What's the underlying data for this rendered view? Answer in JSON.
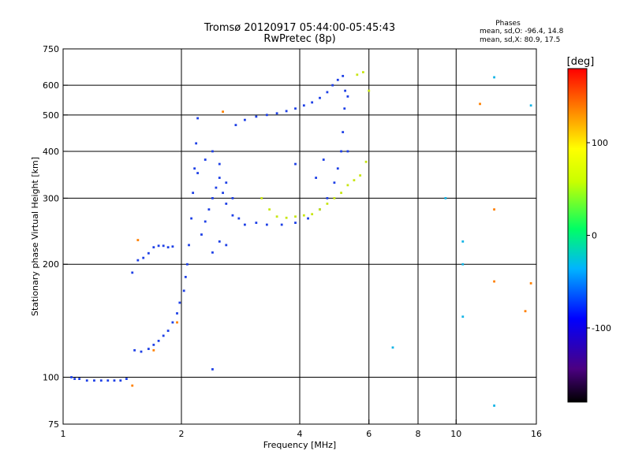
{
  "chart_data": {
    "type": "scatter",
    "title": "Tromsø 20120917 05:44:00-05:45:43",
    "subtitle": "RwPretec (8p)",
    "xlabel": "Frequency [MHz]",
    "ylabel": "Stationary phase Virtual Height [km]",
    "xscale": "log",
    "yscale": "log",
    "xlim": [
      1,
      16
    ],
    "ylim": [
      75,
      750
    ],
    "xticks": [
      1,
      2,
      4,
      6,
      8,
      10,
      16
    ],
    "yticks": [
      75,
      100,
      200,
      300,
      400,
      500,
      600,
      750
    ],
    "xgrid": [
      2,
      4,
      6,
      8,
      10
    ],
    "ygrid": [
      100,
      200,
      300,
      400,
      500,
      600
    ],
    "grid": true,
    "stats": {
      "heading": "Phases",
      "line_o": "mean, sd,O: -96.4, 14.8",
      "line_x": "mean, sd,X:  80.9, 17.5"
    },
    "colorbar": {
      "label": "[deg]",
      "min": -180,
      "max": 180,
      "ticks": [
        100,
        0,
        -100
      ],
      "placement": "right"
    },
    "series": [
      {
        "color": "#1e40e6",
        "description": "blue / purple traces",
        "points": [
          [
            1.05,
            100
          ],
          [
            1.07,
            99
          ],
          [
            1.1,
            99
          ],
          [
            1.15,
            98
          ],
          [
            1.2,
            98
          ],
          [
            1.25,
            98
          ],
          [
            1.3,
            98
          ],
          [
            1.35,
            98
          ],
          [
            1.4,
            98
          ],
          [
            1.45,
            99
          ],
          [
            1.5,
            190
          ],
          [
            1.55,
            205
          ],
          [
            1.6,
            208
          ],
          [
            1.65,
            214
          ],
          [
            1.7,
            222
          ],
          [
            1.75,
            224
          ],
          [
            1.8,
            224
          ],
          [
            1.85,
            222
          ],
          [
            1.9,
            223
          ],
          [
            1.52,
            118
          ],
          [
            1.58,
            117
          ],
          [
            1.65,
            119
          ],
          [
            1.7,
            122
          ],
          [
            1.75,
            125
          ],
          [
            1.8,
            129
          ],
          [
            1.85,
            133
          ],
          [
            1.9,
            140
          ],
          [
            1.95,
            148
          ],
          [
            1.98,
            158
          ],
          [
            2.03,
            170
          ],
          [
            2.05,
            185
          ],
          [
            2.07,
            200
          ],
          [
            2.09,
            225
          ],
          [
            2.12,
            265
          ],
          [
            2.14,
            310
          ],
          [
            2.16,
            360
          ],
          [
            2.18,
            420
          ],
          [
            2.2,
            490
          ],
          [
            2.25,
            240
          ],
          [
            2.3,
            260
          ],
          [
            2.35,
            280
          ],
          [
            2.4,
            300
          ],
          [
            2.45,
            320
          ],
          [
            2.5,
            340
          ],
          [
            2.55,
            310
          ],
          [
            2.6,
            290
          ],
          [
            2.7,
            270
          ],
          [
            2.8,
            265
          ],
          [
            2.2,
            350
          ],
          [
            2.3,
            380
          ],
          [
            2.4,
            400
          ],
          [
            2.5,
            370
          ],
          [
            2.6,
            330
          ],
          [
            2.7,
            300
          ],
          [
            2.5,
            230
          ],
          [
            2.6,
            225
          ],
          [
            2.4,
            215
          ],
          [
            2.75,
            470
          ],
          [
            2.9,
            485
          ],
          [
            3.1,
            495
          ],
          [
            3.3,
            500
          ],
          [
            3.5,
            505
          ],
          [
            3.7,
            512
          ],
          [
            3.9,
            520
          ],
          [
            4.1,
            530
          ],
          [
            4.3,
            540
          ],
          [
            4.5,
            555
          ],
          [
            4.7,
            575
          ],
          [
            4.85,
            600
          ],
          [
            5.0,
            620
          ],
          [
            5.15,
            635
          ],
          [
            2.9,
            255
          ],
          [
            3.1,
            258
          ],
          [
            3.3,
            255
          ],
          [
            3.6,
            255
          ],
          [
            3.9,
            258
          ],
          [
            4.2,
            265
          ],
          [
            4.5,
            280
          ],
          [
            4.7,
            300
          ],
          [
            4.9,
            330
          ],
          [
            5.0,
            360
          ],
          [
            5.1,
            400
          ],
          [
            5.15,
            450
          ],
          [
            5.2,
            520
          ],
          [
            5.22,
            580
          ],
          [
            5.3,
            560
          ],
          [
            5.3,
            400
          ],
          [
            4.6,
            380
          ],
          [
            4.4,
            340
          ],
          [
            3.9,
            370
          ],
          [
            2.4,
            105
          ]
        ]
      },
      {
        "color": "#c8e614",
        "description": "yellow-green trace",
        "points": [
          [
            3.2,
            300
          ],
          [
            3.35,
            280
          ],
          [
            3.5,
            268
          ],
          [
            3.7,
            266
          ],
          [
            3.9,
            268
          ],
          [
            4.1,
            270
          ],
          [
            4.3,
            272
          ],
          [
            4.5,
            280
          ],
          [
            4.7,
            290
          ],
          [
            4.9,
            300
          ],
          [
            5.1,
            310
          ],
          [
            5.3,
            325
          ],
          [
            5.5,
            335
          ],
          [
            5.7,
            345
          ],
          [
            5.9,
            375
          ],
          [
            5.6,
            640
          ],
          [
            5.8,
            650
          ],
          [
            6.0,
            580
          ]
        ]
      },
      {
        "color": "#ff8000",
        "description": "scattered orange / red / other points",
        "points": [
          [
            1.5,
            95
          ],
          [
            1.55,
            232
          ],
          [
            1.7,
            118
          ],
          [
            1.95,
            140
          ],
          [
            2.55,
            510
          ],
          [
            11.5,
            535
          ],
          [
            12.5,
            180
          ],
          [
            12.5,
            280
          ],
          [
            15,
            150
          ],
          [
            15.5,
            178
          ]
        ]
      },
      {
        "color": "#14b4e6",
        "description": "scattered cyan points",
        "points": [
          [
            6.9,
            120
          ],
          [
            9.4,
            300
          ],
          [
            10.4,
            230
          ],
          [
            10.4,
            200
          ],
          [
            10.4,
            145
          ],
          [
            12.5,
            630
          ],
          [
            12.5,
            84
          ],
          [
            15.5,
            530
          ]
        ]
      }
    ]
  }
}
